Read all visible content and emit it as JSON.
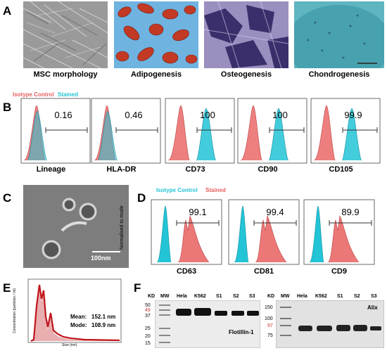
{
  "panels": {
    "a": "A",
    "b": "B",
    "c": "C",
    "d": "D",
    "e": "E",
    "f": "F"
  },
  "micrographs": [
    {
      "caption": "MSC morphology"
    },
    {
      "caption": "Adipogenesis"
    },
    {
      "caption": "Osteogenesis"
    },
    {
      "caption": "Chondrogenesis"
    }
  ],
  "flow_b": {
    "legend_isotype": "Isotype Control",
    "legend_stained": "Stained",
    "isotype_color": "#e8605f",
    "stained_color": "#22c4d6",
    "plots": [
      {
        "marker": "Lineage",
        "percent": "0.16"
      },
      {
        "marker": "HLA-DR",
        "percent": "0.46"
      },
      {
        "marker": "CD73",
        "percent": "100"
      },
      {
        "marker": "CD90",
        "percent": "100"
      },
      {
        "marker": "CD105",
        "percent": "99.9"
      }
    ]
  },
  "tem": {
    "scale_bar": "100nm"
  },
  "flow_d": {
    "legend_isotype": "Isotype Control",
    "legend_stained": "Stained",
    "ylabel": "Normalised to mode",
    "plots": [
      {
        "marker": "CD63",
        "percent": "99.1"
      },
      {
        "marker": "CD81",
        "percent": "99.4"
      },
      {
        "marker": "CD9",
        "percent": "89.9"
      }
    ]
  },
  "nta": {
    "ylabel": "Concentration (particles / ml)",
    "xlabel": "Size (nm)",
    "mean_label": "Mean:",
    "mean_value": "152.1 nm",
    "mode_label": "Mode:",
    "mode_value": "108.9 nm"
  },
  "blot1": {
    "kd_header": "KD",
    "lanes": [
      "MW",
      "Hela",
      "K562",
      "S1",
      "S2",
      "S3"
    ],
    "kd_marks": [
      "50",
      "49",
      "37",
      "25",
      "20",
      "15"
    ],
    "protein": "Flotillin-1"
  },
  "blot2": {
    "kd_header": "KD",
    "lanes": [
      "MW",
      "Hela",
      "K562",
      "S1",
      "S2",
      "S3"
    ],
    "kd_marks": [
      "150",
      "100",
      "97",
      "75"
    ],
    "protein": "Alix"
  }
}
